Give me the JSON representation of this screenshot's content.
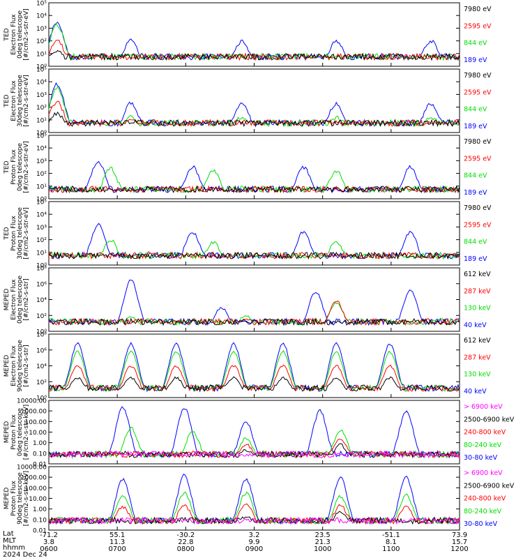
{
  "chart_data": [
    {
      "type": "line",
      "instrument": "TED",
      "ylabel": "Electron Flux\n0deg telescope\n[#/cm2-s-str-eV]",
      "yticks": [
        "10⁰",
        "10¹",
        "10²",
        "10³",
        "10⁴",
        "10⁵"
      ],
      "ylim": [
        1,
        100000
      ],
      "log_y": true,
      "series": [
        {
          "name": "7980 eV",
          "color": "#000000",
          "peaks": [
            0.02,
            0.22,
            0.48,
            0.7,
            0.94
          ],
          "level": [
            1.2,
            0.3,
            0.2,
            0.2,
            0.2
          ]
        },
        {
          "name": "2595 eV",
          "color": "#ff0000",
          "peaks": [
            0.02,
            0.2,
            0.48,
            0.7,
            0.94
          ],
          "level": [
            2.0,
            0.5,
            0.4,
            0.4,
            0.4
          ]
        },
        {
          "name": "844 eV",
          "color": "#00dd00",
          "peaks": [
            0.02,
            0.2,
            0.47,
            0.7,
            0.93
          ],
          "level": [
            3.3,
            0.8,
            0.8,
            0.8,
            0.8
          ]
        },
        {
          "name": "189 eV",
          "color": "#0000ff",
          "peaks": [
            0.02,
            0.2,
            0.47,
            0.7,
            0.93
          ],
          "level": [
            3.5,
            2.0,
            2.0,
            2.0,
            2.0
          ]
        }
      ]
    },
    {
      "type": "line",
      "instrument": "TED",
      "ylabel": "Electron Flux\n30deg telescope\n[#/cm2-s-str-eV]",
      "yticks": [
        "10⁰",
        "10¹",
        "10²",
        "10³",
        "10⁴",
        "10⁵"
      ],
      "ylim": [
        1,
        100000
      ],
      "log_y": true,
      "series": [
        {
          "name": "7980 eV",
          "color": "#000000",
          "peaks": [
            0.02,
            0.22,
            0.48,
            0.7,
            0.94
          ],
          "level": [
            1.5,
            0.8,
            0.5,
            0.5,
            0.5
          ]
        },
        {
          "name": "2595 eV",
          "color": "#ff0000",
          "peaks": [
            0.02,
            0.2,
            0.48,
            0.7,
            0.94
          ],
          "level": [
            2.4,
            1.0,
            0.8,
            0.8,
            0.8
          ]
        },
        {
          "name": "844 eV",
          "color": "#00dd00",
          "peaks": [
            0.02,
            0.2,
            0.47,
            0.7,
            0.93
          ],
          "level": [
            3.5,
            1.2,
            1.2,
            1.2,
            1.2
          ]
        },
        {
          "name": "189 eV",
          "color": "#0000ff",
          "peaks": [
            0.02,
            0.2,
            0.47,
            0.7,
            0.93
          ],
          "level": [
            3.8,
            2.3,
            2.3,
            2.3,
            2.3
          ]
        }
      ]
    },
    {
      "type": "line",
      "instrument": "TED",
      "ylabel": "Proton Flux\n0deg telescope\n[#/cm2-s-str-eV]",
      "yticks": [
        "10⁰",
        "10¹",
        "10²",
        "10³",
        "10⁴",
        "10⁵"
      ],
      "ylim": [
        1,
        100000
      ],
      "log_y": true,
      "series": [
        {
          "name": "7980 eV",
          "color": "#000000",
          "peaks": [
            0.25,
            0.5,
            0.72
          ],
          "level": [
            0.6,
            0.3,
            0.3
          ]
        },
        {
          "name": "2595 eV",
          "color": "#ff0000",
          "peaks": [
            0.25,
            0.5,
            0.72
          ],
          "level": [
            0.9,
            0.5,
            0.5
          ]
        },
        {
          "name": "844 eV",
          "color": "#00dd00",
          "peaks": [
            0.15,
            0.4,
            0.7
          ],
          "level": [
            2.4,
            2.2,
            2.2
          ]
        },
        {
          "name": "189 eV",
          "color": "#0000ff",
          "peaks": [
            0.12,
            0.35,
            0.62,
            0.88
          ],
          "level": [
            3.0,
            2.5,
            2.5,
            2.5
          ]
        }
      ]
    },
    {
      "type": "line",
      "instrument": "TED",
      "ylabel": "Proton Flux\n30deg telescope\n[#/cm2-s-str-eV]",
      "yticks": [
        "10⁰",
        "10¹",
        "10²",
        "10³",
        "10⁴",
        "10⁵"
      ],
      "ylim": [
        1,
        100000
      ],
      "log_y": true,
      "series": [
        {
          "name": "7980 eV",
          "color": "#000000",
          "peaks": [
            0.25,
            0.5,
            0.72
          ],
          "level": [
            0.6,
            0.3,
            0.3
          ]
        },
        {
          "name": "2595 eV",
          "color": "#ff0000",
          "peaks": [
            0.25,
            0.5,
            0.72
          ],
          "level": [
            1.0,
            0.6,
            0.6
          ]
        },
        {
          "name": "844 eV",
          "color": "#00dd00",
          "peaks": [
            0.15,
            0.4,
            0.7
          ],
          "level": [
            2.0,
            1.8,
            1.8
          ]
        },
        {
          "name": "189 eV",
          "color": "#0000ff",
          "peaks": [
            0.12,
            0.35,
            0.62,
            0.88
          ],
          "level": [
            3.2,
            2.6,
            2.6,
            2.6
          ]
        }
      ]
    },
    {
      "type": "line",
      "instrument": "MEPED",
      "ylabel": "Electron Flux\n0deg telescope\n[#/cm2-s-str]",
      "yticks": [
        "10⁰",
        "10²",
        "10⁴",
        "10⁶",
        "10⁸"
      ],
      "ylim": [
        1,
        100000000
      ],
      "log_y": true,
      "series": [
        {
          "name": "612 keV",
          "color": "#000000",
          "peaks": [
            0.48,
            0.7
          ],
          "level": [
            1.0,
            1.0
          ]
        },
        {
          "name": "287 keV",
          "color": "#ff0000",
          "peaks": [
            0.48,
            0.7
          ],
          "level": [
            1.5,
            3.8
          ]
        },
        {
          "name": "130 keV",
          "color": "#00dd00",
          "peaks": [
            0.2,
            0.48,
            0.7
          ],
          "level": [
            1.8,
            2.0,
            3.6
          ]
        },
        {
          "name": "40 keV",
          "color": "#0000ff",
          "peaks": [
            0.2,
            0.42,
            0.65,
            0.88
          ],
          "level": [
            6.5,
            3.0,
            5.0,
            5.2
          ]
        }
      ]
    },
    {
      "type": "line",
      "instrument": "MEPED",
      "ylabel": "Electron Flux\n90deg telescope\n[#/cm2-s-str]",
      "yticks": [
        "10⁰",
        "10²",
        "10⁴",
        "10⁶",
        "10⁸"
      ],
      "ylim": [
        1,
        100000000
      ],
      "log_y": true,
      "series": [
        {
          "name": "612 keV",
          "color": "#000000",
          "peaks": [
            0.07,
            0.2,
            0.31,
            0.45,
            0.57,
            0.7,
            0.83
          ],
          "level": [
            2.5,
            2.5,
            2.5,
            2.5,
            2.5,
            2.5,
            2.5
          ]
        },
        {
          "name": "287 keV",
          "color": "#ff0000",
          "peaks": [
            0.07,
            0.2,
            0.31,
            0.45,
            0.57,
            0.7,
            0.83
          ],
          "level": [
            4.0,
            4.0,
            4.0,
            4.0,
            4.0,
            4.0,
            4.0
          ]
        },
        {
          "name": "130 keV",
          "color": "#00dd00",
          "peaks": [
            0.07,
            0.2,
            0.31,
            0.45,
            0.57,
            0.7,
            0.83
          ],
          "level": [
            5.8,
            5.8,
            5.8,
            5.8,
            5.8,
            5.8,
            5.8
          ]
        },
        {
          "name": "40 keV",
          "color": "#0000ff",
          "peaks": [
            0.07,
            0.2,
            0.31,
            0.45,
            0.57,
            0.7,
            0.83
          ],
          "level": [
            6.8,
            6.8,
            6.8,
            6.8,
            6.8,
            6.8,
            6.8
          ]
        }
      ]
    },
    {
      "type": "line",
      "instrument": "MEPED",
      "ylabel": "Proton Flux\n0deg telescope\n[#/cm2-s-str-keV]",
      "yticks": [
        "0.01",
        "0.10",
        "1.00",
        "10.00",
        "100.00",
        "1000.00",
        "10000.00"
      ],
      "ylim": [
        0.01,
        10000
      ],
      "log_y": true,
      "series": [
        {
          "name": "> 6900 keV",
          "color": "#ff00ff",
          "peaks": [
            0.48,
            0.71
          ],
          "level": [
            -1.2,
            -1.2
          ]
        },
        {
          "name": "2500-6900 keV",
          "color": "#000000",
          "peaks": [
            0.48,
            0.71
          ],
          "level": [
            -0.7,
            -0.2
          ]
        },
        {
          "name": "240-800 keV",
          "color": "#ff0000",
          "peaks": [
            0.48,
            0.71
          ],
          "level": [
            -0.2,
            0.4
          ]
        },
        {
          "name": "80-240 keV",
          "color": "#00dd00",
          "peaks": [
            0.2,
            0.35,
            0.48,
            0.71
          ],
          "level": [
            1.4,
            1.0,
            0.4,
            1.2
          ]
        },
        {
          "name": "30-80 keV",
          "color": "#0000ff",
          "peaks": [
            0.18,
            0.33,
            0.48,
            0.66,
            0.87
          ],
          "level": [
            3.3,
            3.3,
            2.0,
            3.0,
            3.0
          ]
        }
      ]
    },
    {
      "type": "line",
      "instrument": "MEPED",
      "ylabel": "Proton Flux\n90deg telescope\n[#/cm2-s-str-keV]",
      "yticks": [
        "0.01",
        "0.10",
        "1.00",
        "10.00",
        "100.00",
        "1000.00",
        "10000.00"
      ],
      "ylim": [
        0.01,
        10000
      ],
      "log_y": true,
      "series": [
        {
          "name": "> 6900 keV",
          "color": "#ff00ff",
          "peaks": [
            0.48,
            0.71
          ],
          "level": [
            -1.2,
            -1.2
          ]
        },
        {
          "name": "2500-6900 keV",
          "color": "#000000",
          "peaks": [
            0.33,
            0.48,
            0.71
          ],
          "level": [
            -1.0,
            -0.7,
            -0.3
          ]
        },
        {
          "name": "240-800 keV",
          "color": "#ff0000",
          "peaks": [
            0.18,
            0.33,
            0.48,
            0.71,
            0.87
          ],
          "level": [
            0.2,
            0.3,
            0.5,
            0.3,
            0.2
          ]
        },
        {
          "name": "80-240 keV",
          "color": "#00dd00",
          "peaks": [
            0.18,
            0.33,
            0.48,
            0.71,
            0.87
          ],
          "level": [
            1.3,
            1.5,
            1.5,
            1.2,
            1.3
          ]
        },
        {
          "name": "30-80 keV",
          "color": "#0000ff",
          "peaks": [
            0.18,
            0.33,
            0.48,
            0.71,
            0.87
          ],
          "level": [
            2.8,
            3.2,
            2.8,
            3.0,
            3.0
          ]
        }
      ]
    }
  ],
  "x_axis": {
    "row_labels": [
      "Lat",
      "MLT",
      "hhmm",
      "2024 Dec 24"
    ],
    "ticks": [
      {
        "lat": "-71.2",
        "mlt": "3.8",
        "hhmm": "0600"
      },
      {
        "lat": "55.1",
        "mlt": "11.3",
        "hhmm": "0700"
      },
      {
        "lat": "-30.2",
        "mlt": "22.8",
        "hhmm": "0800"
      },
      {
        "lat": "3.2",
        "mlt": "9.9",
        "hhmm": "0900"
      },
      {
        "lat": "23.5",
        "mlt": "21.3",
        "hhmm": "1000"
      },
      {
        "lat": "-51.1",
        "mlt": "8.1",
        "hhmm": "1100"
      },
      {
        "lat": "73.9",
        "mlt": "15.7",
        "hhmm": "1200"
      }
    ]
  }
}
